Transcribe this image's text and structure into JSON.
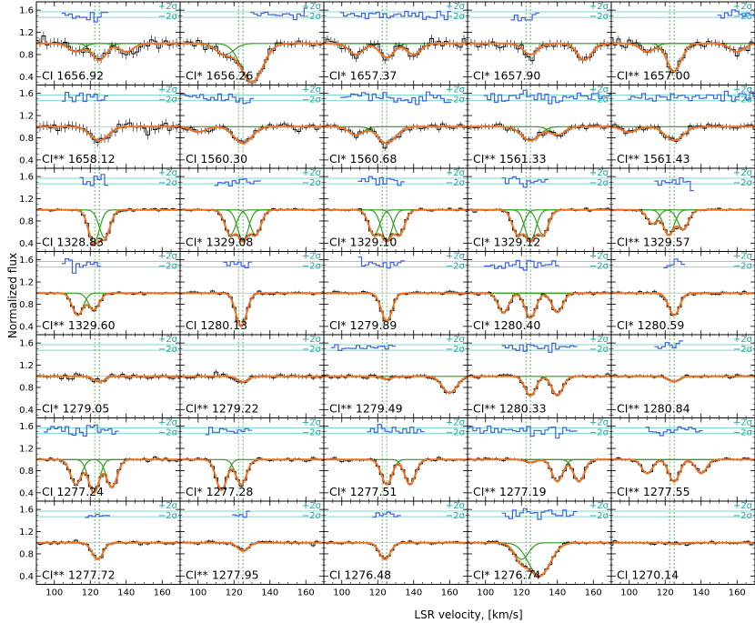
{
  "chart_data": {
    "type": "line",
    "xlabel": "LSR velocity, [km/s]",
    "ylabel": "Normalized flux",
    "xlim": [
      90,
      170
    ],
    "ylim": [
      0.25,
      1.75
    ],
    "x_ticks": [
      "100",
      "120",
      "140",
      "160"
    ],
    "y_ticks": [
      "0.4",
      "0.8",
      "1.2",
      "1.6"
    ],
    "sigma_labels": [
      "+2σ",
      "−2σ"
    ],
    "reference_velocities": [
      122.5,
      125
    ],
    "colors": {
      "data": "#000000",
      "model_total": "#f07020",
      "model_components": "#30a020",
      "model_other": "#a0a0a0",
      "residuals": "#4060e0",
      "sigma_lines": "#80d8d0",
      "reference_line": "#40a040"
    },
    "panels": [
      {
        "label": "CI 1656.92",
        "components": [
          {
            "v": 125,
            "depth": 0.3,
            "w": 4
          },
          {
            "v": 112,
            "depth": 0.15,
            "w": 4
          },
          {
            "v": 140,
            "depth": 0.15,
            "w": 4
          }
        ],
        "noise": 0.08,
        "residual": [
          105,
          130
        ]
      },
      {
        "label": "CI* 1656.26",
        "components": [
          {
            "v": 130,
            "depth": 0.7,
            "w": 6
          },
          {
            "v": 115,
            "depth": 0.2,
            "w": 5
          }
        ],
        "noise": 0.06,
        "residual": [
          130,
          160
        ]
      },
      {
        "label": "CI* 1657.37",
        "components": [
          {
            "v": 125,
            "depth": 0.25,
            "w": 4
          },
          {
            "v": 108,
            "depth": 0.2,
            "w": 4
          },
          {
            "v": 140,
            "depth": 0.2,
            "w": 4
          }
        ],
        "noise": 0.07,
        "residual": [
          100,
          160
        ]
      },
      {
        "label": "CI* 1657.90",
        "components": [
          {
            "v": 125,
            "depth": 0.2,
            "w": 4
          },
          {
            "v": 155,
            "depth": 0.3,
            "w": 4
          }
        ],
        "noise": 0.07,
        "residual": [
          115,
          130
        ]
      },
      {
        "label": "CI** 1657.00",
        "components": [
          {
            "v": 125,
            "depth": 0.5,
            "w": 4
          },
          {
            "v": 110,
            "depth": 0.15,
            "w": 4
          },
          {
            "v": 160,
            "depth": 0.15,
            "w": 4
          }
        ],
        "noise": 0.06,
        "residual": [
          150,
          170
        ]
      },
      {
        "label": "CI** 1658.12",
        "components": [
          {
            "v": 125,
            "depth": 0.25,
            "w": 5
          }
        ],
        "noise": 0.08,
        "residual": [
          105,
          130
        ]
      },
      {
        "label": "CI 1560.30",
        "components": [
          {
            "v": 125,
            "depth": 0.3,
            "w": 5
          },
          {
            "v": 100,
            "depth": 0.1,
            "w": 4
          }
        ],
        "noise": 0.05,
        "residual": [
          90,
          130
        ]
      },
      {
        "label": "CI* 1560.68",
        "components": [
          {
            "v": 125,
            "depth": 0.3,
            "w": 5
          },
          {
            "v": 108,
            "depth": 0.15,
            "w": 4
          }
        ],
        "noise": 0.05,
        "residual": [
          100,
          160
        ]
      },
      {
        "label": "CI** 1561.33",
        "components": [
          {
            "v": 125,
            "depth": 0.25,
            "w": 5
          },
          {
            "v": 140,
            "depth": 0.15,
            "w": 4
          }
        ],
        "noise": 0.05,
        "residual": [
          100,
          170
        ]
      },
      {
        "label": "CI** 1561.43",
        "components": [
          {
            "v": 125,
            "depth": 0.25,
            "w": 5
          },
          {
            "v": 100,
            "depth": 0.1,
            "w": 4
          }
        ],
        "noise": 0.05,
        "residual": [
          100,
          170
        ]
      },
      {
        "label": "CI 1328.83",
        "components": [
          {
            "v": 122,
            "depth": 0.6,
            "w": 3
          },
          {
            "v": 128,
            "depth": 0.5,
            "w": 3
          }
        ],
        "noise": 0.02,
        "residual": [
          115,
          130
        ]
      },
      {
        "label": "CI* 1329.08",
        "components": [
          {
            "v": 118,
            "depth": 0.45,
            "w": 3
          },
          {
            "v": 125,
            "depth": 0.55,
            "w": 3
          },
          {
            "v": 132,
            "depth": 0.45,
            "w": 3
          }
        ],
        "noise": 0.02,
        "residual": [
          110,
          135
        ]
      },
      {
        "label": "CI* 1329.10",
        "components": [
          {
            "v": 118,
            "depth": 0.45,
            "w": 3
          },
          {
            "v": 125,
            "depth": 0.55,
            "w": 3
          },
          {
            "v": 132,
            "depth": 0.45,
            "w": 3
          }
        ],
        "noise": 0.02,
        "residual": [
          110,
          135
        ]
      },
      {
        "label": "CI* 1329.12",
        "components": [
          {
            "v": 118,
            "depth": 0.45,
            "w": 3
          },
          {
            "v": 125,
            "depth": 0.55,
            "w": 3
          },
          {
            "v": 132,
            "depth": 0.45,
            "w": 3
          }
        ],
        "noise": 0.02,
        "residual": [
          110,
          135
        ]
      },
      {
        "label": "CI** 1329.57",
        "components": [
          {
            "v": 113,
            "depth": 0.25,
            "w": 3
          },
          {
            "v": 122,
            "depth": 0.45,
            "w": 3
          },
          {
            "v": 130,
            "depth": 0.35,
            "w": 3
          }
        ],
        "noise": 0.02,
        "residual": [
          115,
          135
        ]
      },
      {
        "label": "CI** 1329.60",
        "components": [
          {
            "v": 113,
            "depth": 0.4,
            "w": 3
          },
          {
            "v": 122,
            "depth": 0.3,
            "w": 3
          }
        ],
        "noise": 0.02,
        "residual": [
          105,
          125
        ]
      },
      {
        "label": "CI 1280.13",
        "components": [
          {
            "v": 124,
            "depth": 0.6,
            "w": 3
          }
        ],
        "noise": 0.025,
        "residual": [
          115,
          130
        ]
      },
      {
        "label": "CI* 1279.89",
        "components": [
          {
            "v": 125,
            "depth": 0.5,
            "w": 3
          }
        ],
        "noise": 0.025,
        "residual": [
          110,
          135
        ]
      },
      {
        "label": "CI* 1280.40",
        "components": [
          {
            "v": 110,
            "depth": 0.35,
            "w": 3
          },
          {
            "v": 125,
            "depth": 0.45,
            "w": 3
          },
          {
            "v": 140,
            "depth": 0.35,
            "w": 3
          }
        ],
        "noise": 0.025,
        "residual": [
          100,
          140
        ]
      },
      {
        "label": "CI* 1280.59",
        "components": [
          {
            "v": 125,
            "depth": 0.4,
            "w": 3
          }
        ],
        "noise": 0.025,
        "residual": [
          120,
          130
        ]
      },
      {
        "label": "CI* 1279.05",
        "components": [
          {
            "v": 125,
            "depth": 0.1,
            "w": 3
          }
        ],
        "noise": 0.04,
        "residual": []
      },
      {
        "label": "CI** 1279.22",
        "components": [
          {
            "v": 125,
            "depth": 0.1,
            "w": 3
          }
        ],
        "noise": 0.04,
        "residual": []
      },
      {
        "label": "CI** 1279.49",
        "components": [
          {
            "v": 160,
            "depth": 0.3,
            "w": 4
          },
          {
            "v": 125,
            "depth": 0.05,
            "w": 3
          }
        ],
        "noise": 0.03,
        "residual": [
          95,
          130
        ]
      },
      {
        "label": "CI** 1280.33",
        "components": [
          {
            "v": 125,
            "depth": 0.35,
            "w": 3
          },
          {
            "v": 140,
            "depth": 0.35,
            "w": 3
          }
        ],
        "noise": 0.025,
        "residual": [
          110,
          150
        ]
      },
      {
        "label": "CI** 1280.84",
        "components": [
          {
            "v": 125,
            "depth": 0.1,
            "w": 3
          }
        ],
        "noise": 0.025,
        "residual": [
          115,
          130
        ]
      },
      {
        "label": "CI 1277.24",
        "components": [
          {
            "v": 112,
            "depth": 0.45,
            "w": 3
          },
          {
            "v": 122,
            "depth": 0.6,
            "w": 3
          },
          {
            "v": 132,
            "depth": 0.5,
            "w": 3
          }
        ],
        "noise": 0.025,
        "residual": [
          95,
          135
        ]
      },
      {
        "label": "CI* 1277.28",
        "components": [
          {
            "v": 113,
            "depth": 0.55,
            "w": 3
          },
          {
            "v": 124,
            "depth": 0.45,
            "w": 3
          }
        ],
        "noise": 0.025,
        "residual": [
          105,
          130
        ]
      },
      {
        "label": "CI* 1277.51",
        "components": [
          {
            "v": 125,
            "depth": 0.45,
            "w": 3
          },
          {
            "v": 138,
            "depth": 0.45,
            "w": 3
          }
        ],
        "noise": 0.025,
        "residual": [
          115,
          145
        ]
      },
      {
        "label": "CI** 1277.19",
        "components": [
          {
            "v": 140,
            "depth": 0.4,
            "w": 3
          },
          {
            "v": 152,
            "depth": 0.4,
            "w": 3
          },
          {
            "v": 125,
            "depth": 0.05,
            "w": 3
          }
        ],
        "noise": 0.025,
        "residual": [
          90,
          150
        ]
      },
      {
        "label": "CI** 1277.55",
        "components": [
          {
            "v": 110,
            "depth": 0.25,
            "w": 3
          },
          {
            "v": 125,
            "depth": 0.4,
            "w": 3
          },
          {
            "v": 140,
            "depth": 0.25,
            "w": 3
          }
        ],
        "noise": 0.025,
        "residual": [
          110,
          140
        ]
      },
      {
        "label": "CI** 1277.72",
        "components": [
          {
            "v": 124,
            "depth": 0.3,
            "w": 3
          }
        ],
        "noise": 0.025,
        "residual": [
          118,
          130
        ]
      },
      {
        "label": "CI** 1277.95",
        "components": [
          {
            "v": 125,
            "depth": 0.15,
            "w": 3
          }
        ],
        "noise": 0.03,
        "residual": [
          120,
          128
        ]
      },
      {
        "label": "CI 1276.48",
        "components": [
          {
            "v": 124,
            "depth": 0.3,
            "w": 3
          }
        ],
        "noise": 0.025,
        "residual": [
          118,
          132
        ]
      },
      {
        "label": "CI* 1276.74",
        "components": [
          {
            "v": 130,
            "depth": 0.6,
            "w": 6
          },
          {
            "v": 120,
            "depth": 0.3,
            "w": 4
          }
        ],
        "noise": 0.025,
        "residual": [
          110,
          150
        ]
      },
      {
        "label": "CI 1270.14",
        "components": [
          {
            "v": 125,
            "depth": 0.02,
            "w": 3
          }
        ],
        "noise": 0.025,
        "residual": []
      }
    ]
  }
}
